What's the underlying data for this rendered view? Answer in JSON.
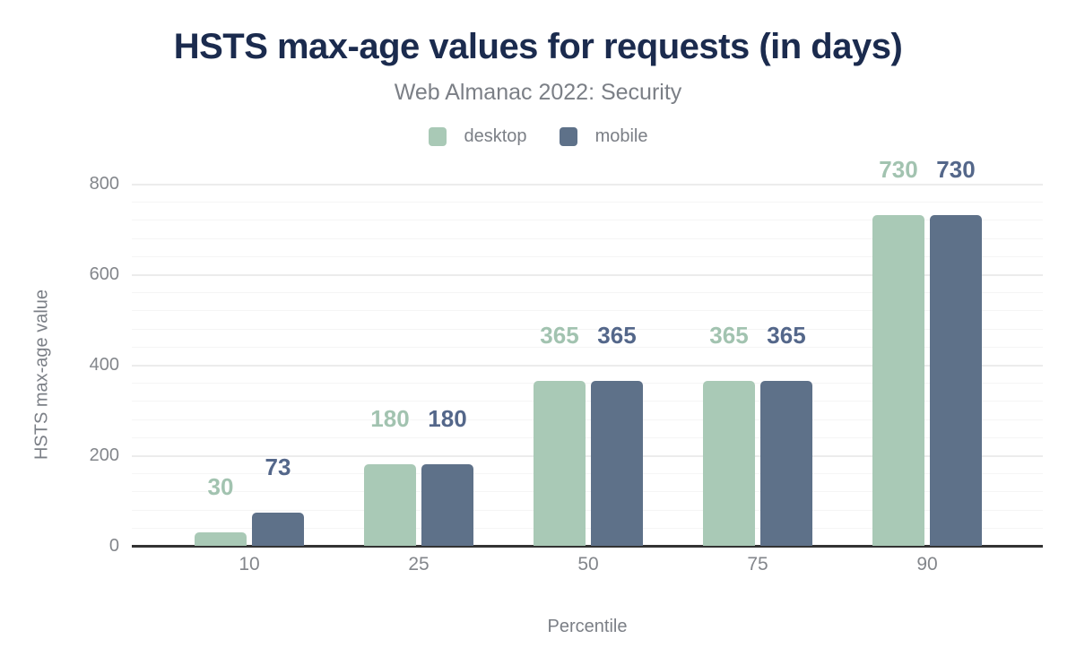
{
  "chart_data": {
    "type": "bar",
    "title": "HSTS max-age values for requests (in days)",
    "subtitle": "Web Almanac 2022: Security",
    "xlabel": "Percentile",
    "ylabel": "HSTS max-age value",
    "categories": [
      "10",
      "25",
      "50",
      "75",
      "90"
    ],
    "series": [
      {
        "name": "desktop",
        "color": "#a9c9b6",
        "label_color": "#a2c3b0",
        "values": [
          30,
          180,
          365,
          365,
          730
        ]
      },
      {
        "name": "mobile",
        "color": "#5e7189",
        "label_color": "#54678a",
        "values": [
          73,
          180,
          365,
          365,
          730
        ]
      }
    ],
    "ylim": [
      0,
      800
    ],
    "yticks": [
      0,
      200,
      400,
      600,
      800
    ],
    "minor_gridline_step": 40,
    "legend_position": "top",
    "grid": true
  },
  "colors": {
    "background": "#ffffff",
    "title": "#1b2b4e",
    "subtitle_gray": "#7b7f86",
    "tick_gray": "#83868b",
    "axis_line": "#333333",
    "major_gridline": "#ececec",
    "minor_gridline": "#f5f5f5"
  }
}
